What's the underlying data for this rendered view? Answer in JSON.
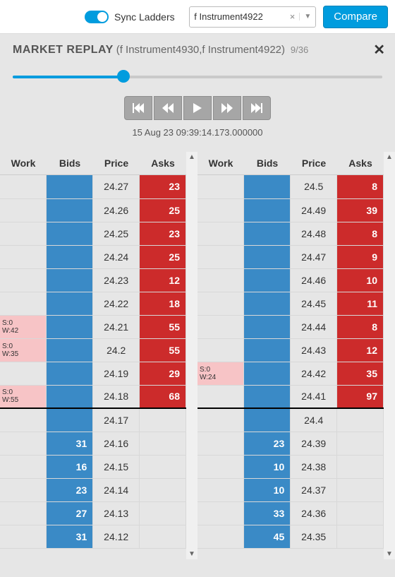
{
  "topbar": {
    "sync_label": "Sync Ladders",
    "instrument": "f Instrument4922",
    "compare_label": "Compare"
  },
  "replay": {
    "title": "MARKET REPLAY",
    "subtitle": "(f Instrument4930,f Instrument4922)",
    "counter": "9/36",
    "timestamp": "15 Aug 23 09:39:14.173.000000",
    "slider_percent": 30
  },
  "colors": {
    "accent": "#009cde",
    "bid": "#3a8ac6",
    "ask": "#cc2b2b",
    "work_hl": "#f7c4c6",
    "bg": "#e6e6e6"
  },
  "headers": {
    "work": "Work",
    "bids": "Bids",
    "price": "Price",
    "asks": "Asks"
  },
  "ladder_left": {
    "rows": [
      {
        "work": "",
        "work_hl": false,
        "bid": "",
        "price": "24.27",
        "ask": "23"
      },
      {
        "work": "",
        "work_hl": false,
        "bid": "",
        "price": "24.26",
        "ask": "25"
      },
      {
        "work": "",
        "work_hl": false,
        "bid": "",
        "price": "24.25",
        "ask": "23"
      },
      {
        "work": "",
        "work_hl": false,
        "bid": "",
        "price": "24.24",
        "ask": "25"
      },
      {
        "work": "",
        "work_hl": false,
        "bid": "",
        "price": "24.23",
        "ask": "12"
      },
      {
        "work": "",
        "work_hl": false,
        "bid": "",
        "price": "24.22",
        "ask": "18"
      },
      {
        "work": "S:0\nW:42",
        "work_hl": true,
        "bid": "",
        "price": "24.21",
        "ask": "55"
      },
      {
        "work": "S:0\nW:35",
        "work_hl": true,
        "bid": "",
        "price": "24.2",
        "ask": "55"
      },
      {
        "work": "",
        "work_hl": false,
        "bid": "",
        "price": "24.19",
        "ask": "29"
      },
      {
        "work": "S:0\nW:55",
        "work_hl": true,
        "bid": "",
        "price": "24.18",
        "ask": "68",
        "midline": true
      },
      {
        "work": "",
        "work_hl": false,
        "bid": "",
        "price": "24.17",
        "ask": ""
      },
      {
        "work": "",
        "work_hl": false,
        "bid": "31",
        "price": "24.16",
        "ask": ""
      },
      {
        "work": "",
        "work_hl": false,
        "bid": "16",
        "price": "24.15",
        "ask": ""
      },
      {
        "work": "",
        "work_hl": false,
        "bid": "23",
        "price": "24.14",
        "ask": ""
      },
      {
        "work": "",
        "work_hl": false,
        "bid": "27",
        "price": "24.13",
        "ask": ""
      },
      {
        "work": "",
        "work_hl": false,
        "bid": "31",
        "price": "24.12",
        "ask": ""
      }
    ]
  },
  "ladder_right": {
    "rows": [
      {
        "work": "",
        "work_hl": false,
        "bid": "",
        "price": "24.5",
        "ask": "8"
      },
      {
        "work": "",
        "work_hl": false,
        "bid": "",
        "price": "24.49",
        "ask": "39"
      },
      {
        "work": "",
        "work_hl": false,
        "bid": "",
        "price": "24.48",
        "ask": "8"
      },
      {
        "work": "",
        "work_hl": false,
        "bid": "",
        "price": "24.47",
        "ask": "9"
      },
      {
        "work": "",
        "work_hl": false,
        "bid": "",
        "price": "24.46",
        "ask": "10"
      },
      {
        "work": "",
        "work_hl": false,
        "bid": "",
        "price": "24.45",
        "ask": "11"
      },
      {
        "work": "",
        "work_hl": false,
        "bid": "",
        "price": "24.44",
        "ask": "8"
      },
      {
        "work": "",
        "work_hl": false,
        "bid": "",
        "price": "24.43",
        "ask": "12"
      },
      {
        "work": "S:0\nW:24",
        "work_hl": true,
        "bid": "",
        "price": "24.42",
        "ask": "35"
      },
      {
        "work": "",
        "work_hl": false,
        "bid": "",
        "price": "24.41",
        "ask": "97",
        "midline": true
      },
      {
        "work": "",
        "work_hl": false,
        "bid": "",
        "price": "24.4",
        "ask": ""
      },
      {
        "work": "",
        "work_hl": false,
        "bid": "23",
        "price": "24.39",
        "ask": ""
      },
      {
        "work": "",
        "work_hl": false,
        "bid": "10",
        "price": "24.38",
        "ask": ""
      },
      {
        "work": "",
        "work_hl": false,
        "bid": "10",
        "price": "24.37",
        "ask": ""
      },
      {
        "work": "",
        "work_hl": false,
        "bid": "33",
        "price": "24.36",
        "ask": ""
      },
      {
        "work": "",
        "work_hl": false,
        "bid": "45",
        "price": "24.35",
        "ask": ""
      }
    ]
  }
}
